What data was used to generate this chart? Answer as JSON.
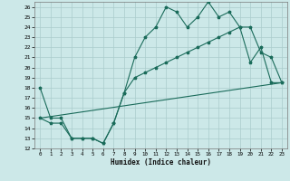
{
  "xlabel": "Humidex (Indice chaleur)",
  "bg_color": "#cce8e8",
  "grid_color": "#aacccc",
  "line_color": "#1a6b5a",
  "xlim": [
    -0.5,
    23.5
  ],
  "ylim": [
    12,
    26.5
  ],
  "yticks": [
    12,
    13,
    14,
    15,
    16,
    17,
    18,
    19,
    20,
    21,
    22,
    23,
    24,
    25,
    26
  ],
  "xticks": [
    0,
    1,
    2,
    3,
    4,
    5,
    6,
    7,
    8,
    9,
    10,
    11,
    12,
    13,
    14,
    15,
    16,
    17,
    18,
    19,
    20,
    21,
    22,
    23
  ],
  "series1_x": [
    0,
    1,
    2,
    3,
    4,
    5,
    6,
    7,
    8,
    9,
    10,
    11,
    12,
    13,
    14,
    15,
    16,
    17,
    18,
    19,
    20,
    21,
    22,
    23
  ],
  "series1_y": [
    18,
    15,
    15,
    13,
    13,
    13,
    12.5,
    14.5,
    17.5,
    21,
    23,
    24,
    26,
    25.5,
    24,
    25,
    26.5,
    25,
    25.5,
    24,
    20.5,
    22,
    18.5,
    18.5
  ],
  "series2_x": [
    0,
    1,
    2,
    3,
    4,
    5,
    6,
    7,
    8,
    9,
    10,
    11,
    12,
    13,
    14,
    15,
    16,
    17,
    18,
    19,
    20,
    21,
    22,
    23
  ],
  "series2_y": [
    15,
    14.5,
    14.5,
    13,
    13,
    13,
    12.5,
    14.5,
    17.5,
    19,
    19.5,
    20,
    20.5,
    21,
    21.5,
    22,
    22.5,
    23,
    23.5,
    24,
    24,
    21.5,
    21,
    18.5
  ],
  "series3_x": [
    0,
    23
  ],
  "series3_y": [
    15,
    18.5
  ]
}
